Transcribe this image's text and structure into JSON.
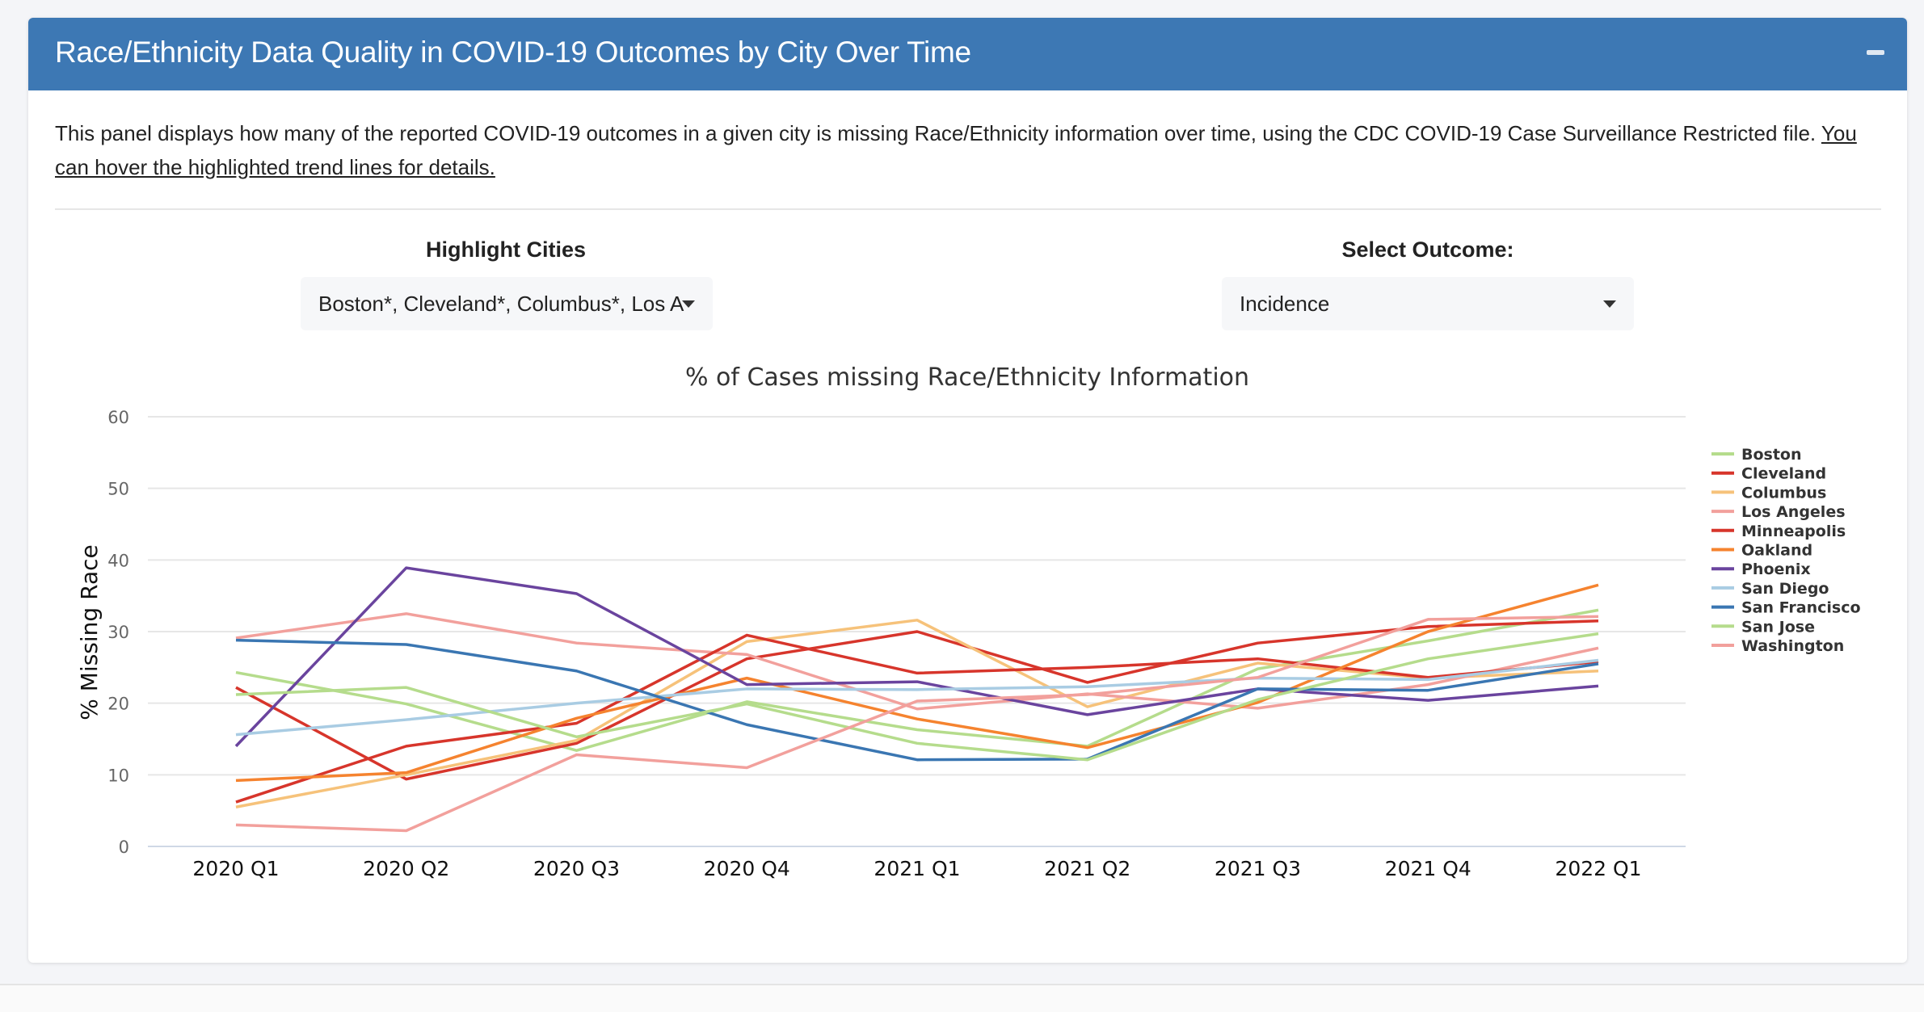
{
  "panel": {
    "title": "Race/Ethnicity Data Quality in COVID-19 Outcomes by City Over Time",
    "collapse_icon": "minus-icon",
    "description": "This panel displays how many of the reported COVID-19 outcomes in a given city is missing Race/Ethnicity information over time, using the CDC COVID-19 Case Surveillance Restricted file. ",
    "description_link": "You can hover the highlighted trend lines for details."
  },
  "controls": {
    "highlight_label": "Highlight Cities",
    "highlight_value": "Boston*, Cleveland*, Columbus*, Los A",
    "outcome_label": "Select Outcome:",
    "outcome_value": "Incidence"
  },
  "chart_data": {
    "type": "line",
    "title": "% of Cases missing Race/Ethnicity Information",
    "xlabel": "",
    "ylabel": "% Missing Race",
    "ylim": [
      0,
      60
    ],
    "yticks": [
      0,
      10,
      20,
      30,
      40,
      50,
      60
    ],
    "grid": true,
    "legend_position": "right",
    "categories": [
      "2020 Q1",
      "2020 Q2",
      "2020 Q3",
      "2020 Q4",
      "2021 Q1",
      "2021 Q2",
      "2021 Q3",
      "2021 Q4",
      "2022 Q1"
    ],
    "series": [
      {
        "name": "Boston",
        "color": "#b5dc8c",
        "values": [
          24.3,
          19.9,
          13.4,
          20.2,
          16.3,
          14.0,
          24.8,
          28.7,
          33.0
        ]
      },
      {
        "name": "Cleveland",
        "color": "#d7352b",
        "values": [
          22.2,
          9.4,
          14.4,
          26.2,
          30.0,
          22.9,
          28.4,
          30.7,
          31.5
        ]
      },
      {
        "name": "Columbus",
        "color": "#f6c27a",
        "values": [
          5.5,
          10.0,
          14.8,
          28.6,
          31.6,
          19.5,
          25.6,
          23.5,
          24.5
        ]
      },
      {
        "name": "Los Angeles",
        "color": "#f2a09c",
        "values": [
          29.1,
          32.5,
          28.4,
          26.8,
          19.2,
          21.3,
          19.3,
          22.6,
          27.7
        ]
      },
      {
        "name": "Minneapolis",
        "color": "#d7352b",
        "values": [
          6.2,
          14.0,
          17.2,
          29.5,
          24.2,
          25.0,
          26.2,
          23.6,
          25.8
        ]
      },
      {
        "name": "Oakland",
        "color": "#f5832f",
        "values": [
          9.2,
          10.3,
          17.9,
          23.5,
          17.8,
          13.8,
          20.1,
          30.0,
          36.5
        ]
      },
      {
        "name": "Phoenix",
        "color": "#6a449e",
        "values": [
          14.0,
          38.9,
          35.3,
          22.6,
          23.0,
          18.4,
          22.0,
          20.4,
          22.4
        ]
      },
      {
        "name": "San Diego",
        "color": "#a9cce3",
        "values": [
          15.6,
          17.7,
          20.0,
          22.0,
          21.9,
          22.3,
          23.5,
          23.3,
          26.0
        ]
      },
      {
        "name": "San Francisco",
        "color": "#3a76b2",
        "values": [
          28.8,
          28.2,
          24.5,
          17.0,
          12.1,
          12.2,
          22.0,
          21.8,
          25.5
        ]
      },
      {
        "name": "San Jose",
        "color": "#b5dc8c",
        "values": [
          21.2,
          22.2,
          15.3,
          19.9,
          14.4,
          12.1,
          20.5,
          26.2,
          29.7
        ]
      },
      {
        "name": "Washington",
        "color": "#f2a09c",
        "values": [
          3.0,
          2.2,
          12.8,
          11.0,
          20.3,
          21.2,
          23.6,
          31.7,
          32.1
        ]
      }
    ]
  }
}
